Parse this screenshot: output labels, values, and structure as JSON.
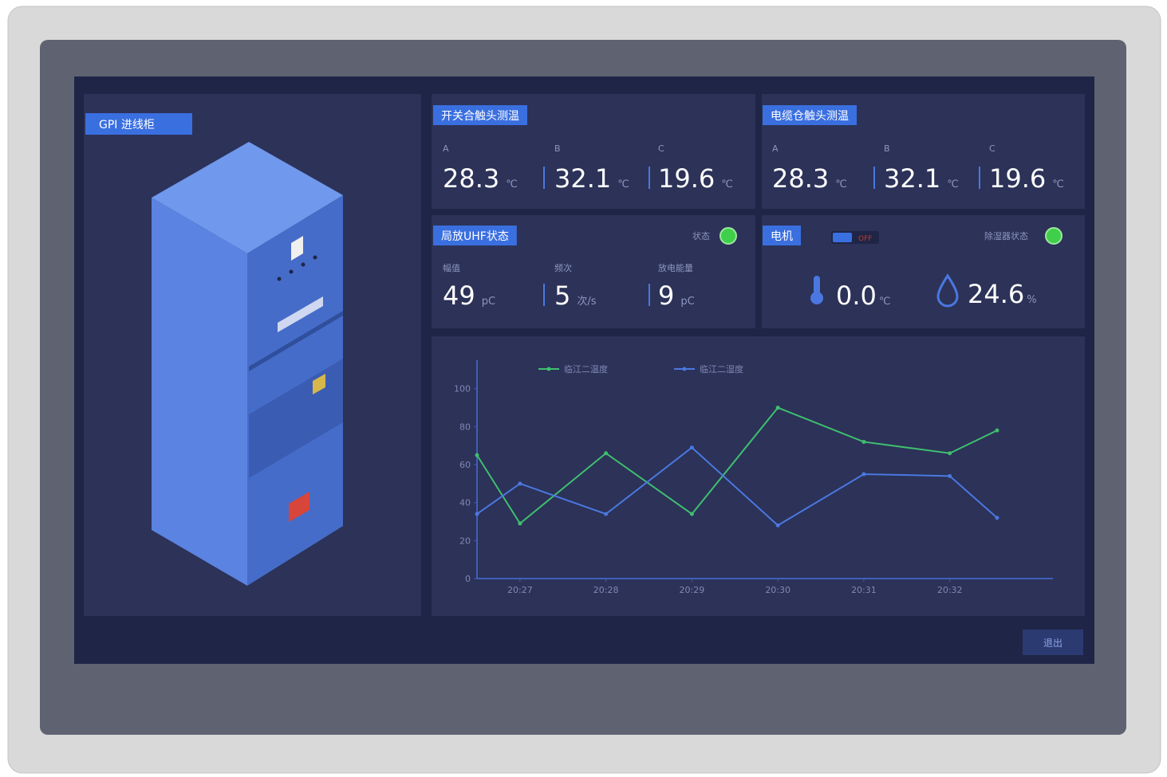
{
  "left_panel": {
    "title": "GPI 进线柜"
  },
  "switch_temp": {
    "title": "开关合触头测温",
    "items": [
      {
        "label": "A",
        "value": "28.3",
        "unit": "℃"
      },
      {
        "label": "B",
        "value": "32.1",
        "unit": "℃"
      },
      {
        "label": "C",
        "value": "19.6",
        "unit": "℃"
      }
    ]
  },
  "cable_temp": {
    "title": "电缆仓触头测温",
    "items": [
      {
        "label": "A",
        "value": "28.3",
        "unit": "℃"
      },
      {
        "label": "B",
        "value": "32.1",
        "unit": "℃"
      },
      {
        "label": "C",
        "value": "19.6",
        "unit": "℃"
      }
    ]
  },
  "uhf": {
    "title": "局放UHF状态",
    "status_label": "状态",
    "items": [
      {
        "label": "幅值",
        "value": "49",
        "unit": "pC"
      },
      {
        "label": "频次",
        "value": "5",
        "unit": "次/s"
      },
      {
        "label": "放电能量",
        "value": "9",
        "unit": "pC"
      }
    ]
  },
  "motor": {
    "title": "电机",
    "toggle": "OFF",
    "dehumidifier_label": "除湿器状态",
    "temperature": {
      "value": "0.0",
      "unit": "℃"
    },
    "humidity": {
      "value": "24.6",
      "unit": "%"
    }
  },
  "chart_data": {
    "type": "line",
    "x": [
      26.5,
      27,
      28,
      29,
      30,
      31,
      32,
      32.55
    ],
    "xlim": [
      26.5,
      33.2
    ],
    "xticks": [
      {
        "value": 27,
        "label": "20:27"
      },
      {
        "value": 28,
        "label": "20:28"
      },
      {
        "value": 29,
        "label": "20:29"
      },
      {
        "value": 30,
        "label": "20:30"
      },
      {
        "value": 31,
        "label": "20:31"
      },
      {
        "value": 32,
        "label": "20:32"
      }
    ],
    "ylim": [
      0,
      115
    ],
    "yticks": [
      0,
      20,
      40,
      60,
      80,
      100
    ],
    "legend": "top",
    "series": [
      {
        "name": "临江二温度",
        "color": "#3fbf6f",
        "values": [
          65,
          29,
          66,
          34,
          90,
          72,
          66,
          78
        ]
      },
      {
        "name": "临江二湿度",
        "color": "#4a78e0",
        "values": [
          34,
          50,
          34,
          69,
          28,
          55,
          54,
          32
        ]
      }
    ]
  },
  "footer": {
    "button": "退出"
  }
}
